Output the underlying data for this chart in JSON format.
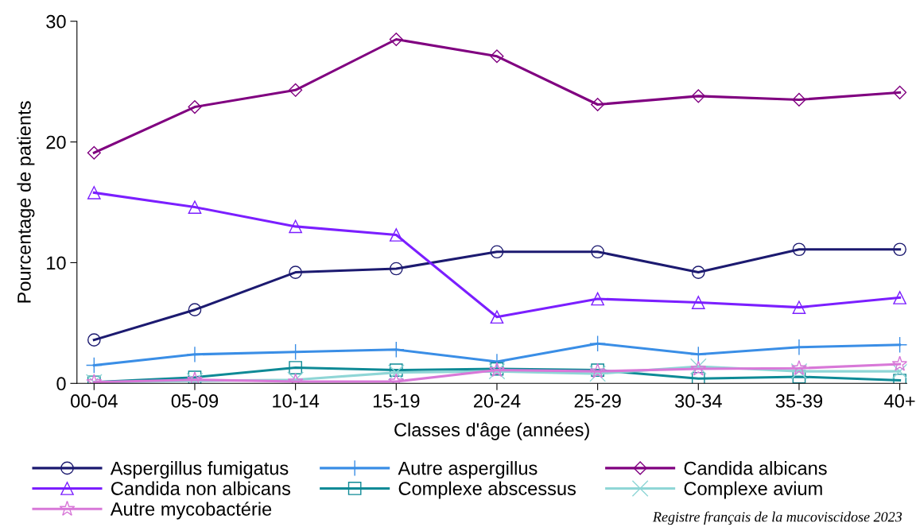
{
  "chart_data": {
    "type": "line",
    "xlabel": "Classes d'âge (années)",
    "ylabel": "Pourcentage de patients",
    "categories": [
      "00-04",
      "05-09",
      "10-14",
      "15-19",
      "20-24",
      "25-29",
      "30-34",
      "35-39",
      "40+"
    ],
    "ylim": [
      0,
      30
    ],
    "yticks": [
      0,
      10,
      20,
      30
    ],
    "grid": false,
    "legend": "bottom",
    "series": [
      {
        "name": "Aspergillus fumigatus",
        "color": "#1c1a70",
        "marker": "circle",
        "values": [
          3.6,
          6.1,
          9.2,
          9.5,
          10.9,
          10.9,
          9.2,
          11.1,
          11.1
        ]
      },
      {
        "name": "Autre aspergillus",
        "color": "#3a8ee6",
        "marker": "plus",
        "values": [
          1.5,
          2.4,
          2.6,
          2.8,
          1.8,
          3.3,
          2.4,
          3.0,
          3.2
        ]
      },
      {
        "name": "Candida albicans",
        "color": "#800080",
        "marker": "diamond",
        "values": [
          19.1,
          22.9,
          24.3,
          28.5,
          27.1,
          23.1,
          23.8,
          23.5,
          24.1
        ]
      },
      {
        "name": "Candida non albicans",
        "color": "#7b1fff",
        "marker": "triangle",
        "values": [
          15.8,
          14.6,
          13.0,
          12.3,
          5.5,
          7.0,
          6.7,
          6.3,
          7.1
        ]
      },
      {
        "name": "Complexe abscessus",
        "color": "#0e8a96",
        "marker": "square",
        "values": [
          0.1,
          0.5,
          1.3,
          1.1,
          1.2,
          1.1,
          0.4,
          0.55,
          0.25
        ]
      },
      {
        "name": "Complexe avium",
        "color": "#8fd6d6",
        "marker": "cross",
        "values": [
          0.1,
          0.2,
          0.3,
          0.9,
          1.0,
          0.8,
          1.4,
          1.0,
          1.0
        ]
      },
      {
        "name": "Autre mycobactérie",
        "color": "#d878d8",
        "marker": "star",
        "values": [
          0.1,
          0.3,
          0.15,
          0.15,
          1.1,
          1.0,
          1.2,
          1.25,
          1.6
        ]
      }
    ],
    "annotations": [
      "Registre français de la mucoviscidose 2023"
    ]
  }
}
